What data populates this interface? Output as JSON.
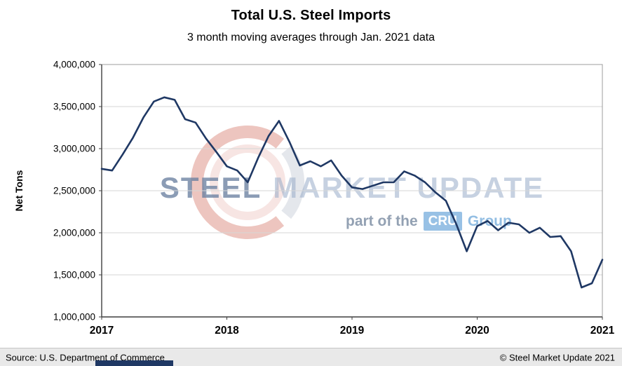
{
  "header": {
    "title": "Total U.S. Steel Imports",
    "subtitle": "3 month moving averages through Jan. 2021 data"
  },
  "watermark": {
    "steel": "STEEL",
    "market_update": "MARKET UPDATE",
    "part_of_label": "part of the",
    "cru_label": "CRU",
    "group_label": "Group",
    "logo_red": "#bf2e1a",
    "logo_pink": "#d77f72",
    "logo_navy": "#1f3864",
    "cru_box_blue": "#8dbae2"
  },
  "footer": {
    "source": "Source: U.S. Department of Commerce",
    "copyright": "© Steel Market Update 2021",
    "accent_color": "#1f3864"
  },
  "chart_data": {
    "type": "line",
    "title": "Total U.S. Steel Imports",
    "subtitle": "3 month moving averages through Jan. 2021 data",
    "xlabel": "",
    "ylabel": "Net Tons",
    "ylim": [
      1000000,
      4000000
    ],
    "y_ticks": [
      1000000,
      1500000,
      2000000,
      2500000,
      3000000,
      3500000,
      4000000
    ],
    "x_tick_labels": [
      "2017",
      "2018",
      "2019",
      "2020",
      "2021"
    ],
    "grid": "horizontal",
    "legend": "none",
    "colors": {
      "line": "#1f3864",
      "grid": "#d6d6d6",
      "border": "#9c9c9c",
      "axis": "#3f3f3f"
    },
    "x": [
      "2017-01",
      "2017-02",
      "2017-03",
      "2017-04",
      "2017-05",
      "2017-06",
      "2017-07",
      "2017-08",
      "2017-09",
      "2017-10",
      "2017-11",
      "2017-12",
      "2018-01",
      "2018-02",
      "2018-03",
      "2018-04",
      "2018-05",
      "2018-06",
      "2018-07",
      "2018-08",
      "2018-09",
      "2018-10",
      "2018-11",
      "2018-12",
      "2019-01",
      "2019-02",
      "2019-03",
      "2019-04",
      "2019-05",
      "2019-06",
      "2019-07",
      "2019-08",
      "2019-09",
      "2019-10",
      "2019-11",
      "2019-12",
      "2020-01",
      "2020-02",
      "2020-03",
      "2020-04",
      "2020-05",
      "2020-06",
      "2020-07",
      "2020-08",
      "2020-09",
      "2020-10",
      "2020-11",
      "2020-12",
      "2021-01"
    ],
    "series": [
      {
        "name": "Total U.S. Steel Imports (3-month moving average, net tons)",
        "color": "#1f3864",
        "values": [
          2760000,
          2740000,
          2930000,
          3130000,
          3370000,
          3560000,
          3610000,
          3580000,
          3350000,
          3310000,
          3120000,
          2960000,
          2790000,
          2740000,
          2600000,
          2890000,
          3150000,
          3330000,
          3080000,
          2800000,
          2850000,
          2790000,
          2860000,
          2680000,
          2540000,
          2520000,
          2560000,
          2600000,
          2600000,
          2730000,
          2680000,
          2600000,
          2480000,
          2380000,
          2100000,
          1780000,
          2080000,
          2140000,
          2030000,
          2120000,
          2100000,
          2000000,
          2060000,
          1950000,
          1960000,
          1780000,
          1350000,
          1400000,
          1680000
        ]
      }
    ]
  }
}
